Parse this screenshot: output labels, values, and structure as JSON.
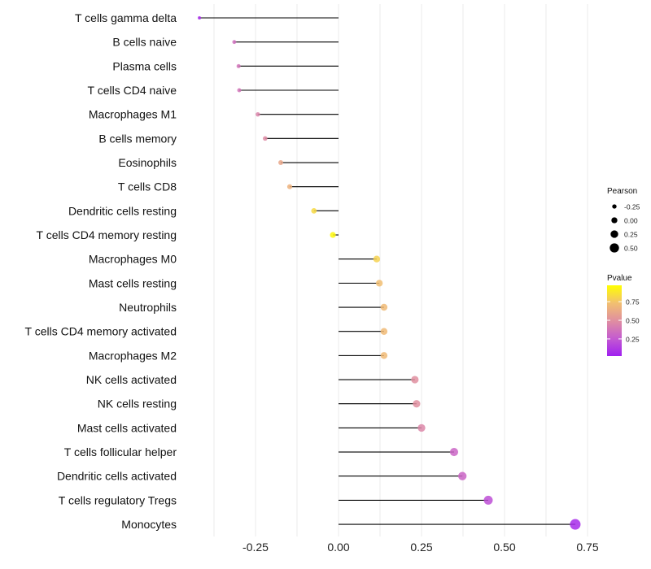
{
  "chart_data": {
    "type": "lollipop",
    "xlabel": "",
    "ylabel": "",
    "xlim": [
      -0.47,
      0.77
    ],
    "xticks": [
      "-0.25",
      "0.00",
      "0.25",
      "0.50",
      "0.75"
    ],
    "xtick_values": [
      -0.25,
      0,
      0.25,
      0.5,
      0.75
    ],
    "categories": [
      "T cells gamma delta",
      "B cells naive",
      "Plasma cells",
      "T cells CD4 naive",
      "Macrophages M1",
      "B cells memory",
      "Eosinophils",
      "T cells CD8",
      "Dendritic cells resting",
      "T cells CD4 memory resting",
      "Macrophages M0",
      "Mast cells resting",
      "Neutrophils",
      "T cells CD4 memory activated",
      "Macrophages M2",
      "NK cells activated",
      "NK cells resting",
      "Mast cells activated",
      "T cells follicular helper",
      "Dendritic cells activated",
      "T cells regulatory  Tregs",
      "Monocytes"
    ],
    "pearson": [
      -0.419,
      -0.314,
      -0.301,
      -0.299,
      -0.243,
      -0.221,
      -0.174,
      -0.147,
      -0.074,
      -0.017,
      0.115,
      0.123,
      0.137,
      0.137,
      0.137,
      0.23,
      0.235,
      0.25,
      0.348,
      0.373,
      0.451,
      0.713
    ],
    "pvalue": [
      0.05,
      0.35,
      0.37,
      0.37,
      0.45,
      0.48,
      0.62,
      0.68,
      0.85,
      0.97,
      0.82,
      0.74,
      0.72,
      0.72,
      0.72,
      0.5,
      0.5,
      0.46,
      0.3,
      0.3,
      0.2,
      0.05
    ],
    "size_legend": {
      "title": "Pearson",
      "labels": [
        "-0.25",
        "0.00",
        "0.25",
        "0.50"
      ],
      "values": [
        -0.25,
        0,
        0.25,
        0.5
      ]
    },
    "color_legend": {
      "title": "Pvalue",
      "labels": [
        "0.75",
        "0.50",
        "0.25"
      ],
      "values": [
        0.75,
        0.5,
        0.25
      ],
      "low_color": "#a020f0",
      "high_color": "#ffff00"
    }
  }
}
